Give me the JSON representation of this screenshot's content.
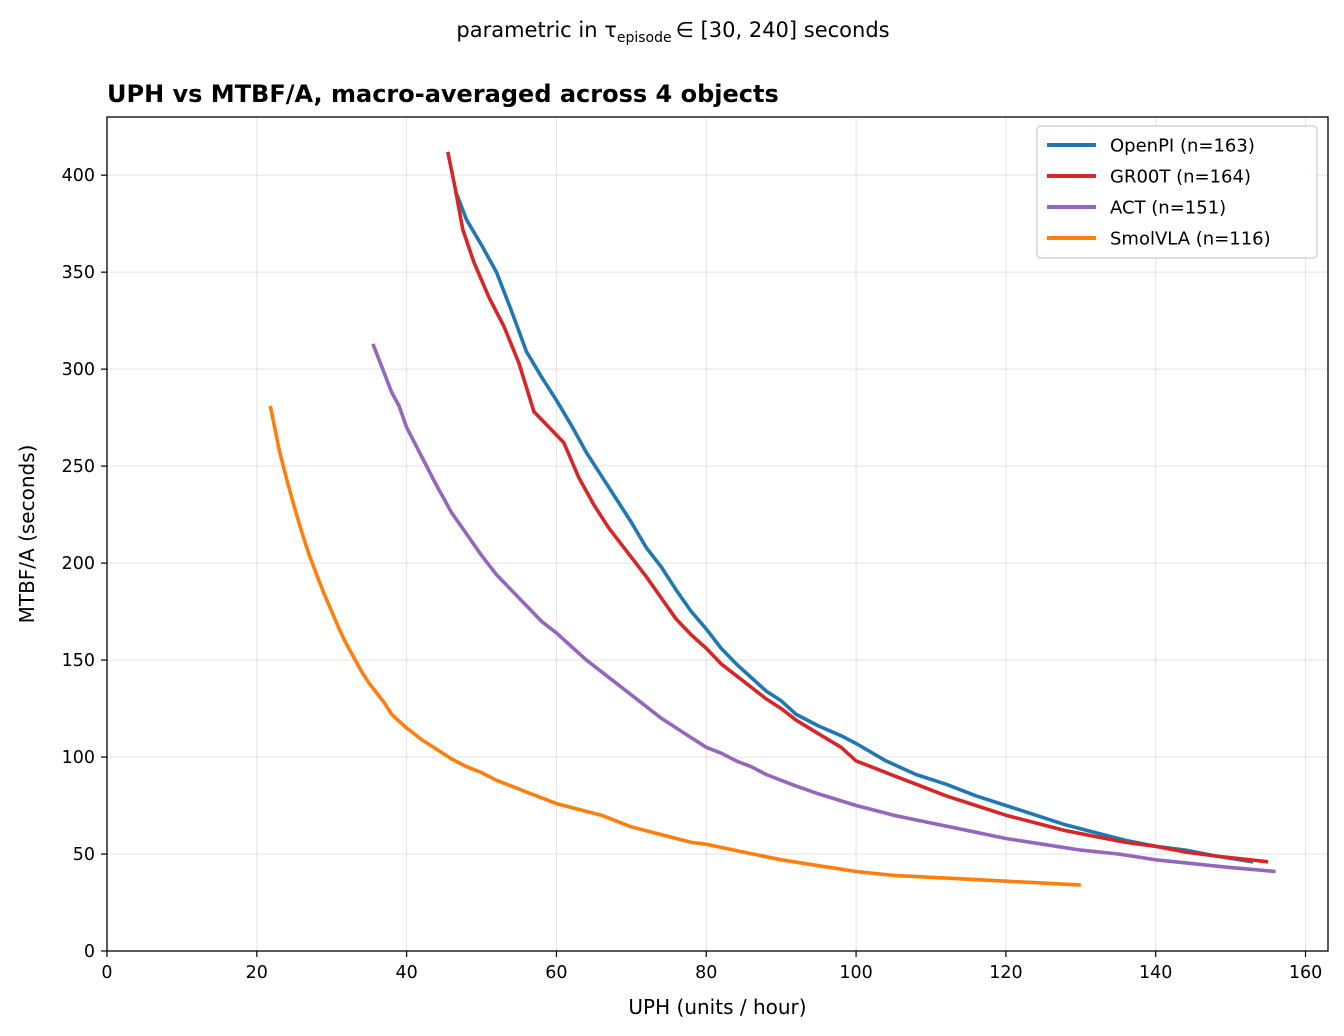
{
  "figure": {
    "suptitle_prefix": "parametric in τ",
    "suptitle_subscript": "episode",
    "suptitle_suffix": "∈ [30, 240] seconds"
  },
  "chart_data": {
    "type": "line",
    "title": "UPH vs MTBF/A, macro-averaged across 4 objects",
    "xlabel": "UPH (units / hour)",
    "ylabel": "MTBF/A (seconds)",
    "xlim": [
      0,
      163
    ],
    "ylim": [
      0,
      430
    ],
    "xticks": [
      0,
      20,
      40,
      60,
      80,
      100,
      120,
      140,
      160
    ],
    "yticks": [
      0,
      50,
      100,
      150,
      200,
      250,
      300,
      350,
      400
    ],
    "grid": true,
    "legend_position": "top-right",
    "series": [
      {
        "name": "OpenPI (n=163)",
        "color": "#1f77b4",
        "x": [
          46.5,
          48,
          50,
          52,
          54,
          56,
          58,
          60,
          62,
          64,
          66,
          68,
          70,
          72,
          74,
          76,
          78,
          80,
          82,
          84,
          86,
          88,
          90,
          92,
          95,
          98,
          100,
          104,
          108,
          112,
          116,
          120,
          124,
          128,
          132,
          136,
          140,
          144,
          148,
          153
        ],
        "values": [
          392,
          377,
          364,
          350,
          330,
          309,
          296,
          284,
          271,
          257,
          245,
          233,
          221,
          208,
          198,
          186,
          175,
          166,
          156,
          148,
          141,
          134,
          129,
          122,
          116,
          111,
          107,
          98,
          91,
          86,
          80,
          75,
          70,
          65,
          61,
          57,
          54,
          52,
          49,
          46
        ]
      },
      {
        "name": "GR00T (n=164)",
        "color": "#d62728",
        "x": [
          45.5,
          46.5,
          47.5,
          49,
          51,
          53,
          55,
          57,
          59,
          61,
          63,
          65,
          67,
          70,
          72,
          74,
          76,
          78,
          80,
          82,
          84,
          86,
          88,
          90,
          92,
          95,
          98,
          100,
          104,
          108,
          112,
          116,
          120,
          124,
          128,
          132,
          136,
          140,
          144,
          148,
          155
        ],
        "values": [
          412,
          393,
          372,
          355,
          337,
          322,
          303,
          278,
          270,
          262,
          244,
          230,
          218,
          203,
          193,
          182,
          171,
          163,
          156,
          148,
          142,
          136,
          130,
          125,
          119,
          112,
          105,
          98,
          92,
          86,
          80,
          75,
          70,
          66,
          62,
          59,
          56,
          54,
          51,
          49,
          46
        ]
      },
      {
        "name": "ACT (n=151)",
        "color": "#9467bd",
        "x": [
          35.5,
          37,
          38,
          39,
          40,
          42,
          44,
          46,
          48,
          50,
          52,
          54,
          56,
          58,
          60,
          62,
          64,
          66,
          68,
          70,
          72,
          74,
          76,
          78,
          80,
          82,
          84,
          86,
          88,
          90,
          92,
          95,
          100,
          105,
          110,
          115,
          120,
          125,
          130,
          135,
          140,
          145,
          150,
          156
        ],
        "values": [
          313,
          298,
          288,
          281,
          270,
          255,
          240,
          226,
          215,
          204,
          194,
          186,
          178,
          170,
          164,
          157,
          150,
          144,
          138,
          132,
          126,
          120,
          115,
          110,
          105,
          102,
          98,
          95,
          91,
          88,
          85,
          81,
          75,
          70,
          66,
          62,
          58,
          55,
          52,
          50,
          47,
          45,
          43,
          41
        ]
      },
      {
        "name": "SmolVLA (n=116)",
        "color": "#ff7f0e",
        "x": [
          21.8,
          22.5,
          23,
          24,
          25,
          26,
          27,
          28,
          29,
          30,
          31,
          32,
          33,
          34,
          35,
          36,
          37,
          38,
          40,
          42,
          44,
          46,
          48,
          50,
          52,
          54,
          56,
          58,
          60,
          62,
          64,
          66,
          68,
          70,
          72,
          74,
          76,
          78,
          80,
          85,
          90,
          95,
          100,
          105,
          110,
          115,
          120,
          125,
          130
        ],
        "values": [
          281,
          268,
          258,
          243,
          229,
          216,
          204,
          194,
          184,
          175,
          166,
          158,
          151,
          144,
          138,
          133,
          128,
          122,
          115,
          109,
          104,
          99,
          95,
          92,
          88,
          85,
          82,
          79,
          76,
          74,
          72,
          70,
          67,
          64,
          62,
          60,
          58,
          56,
          55,
          51,
          47,
          44,
          41,
          39,
          38,
          37,
          36,
          35,
          34
        ]
      }
    ]
  }
}
